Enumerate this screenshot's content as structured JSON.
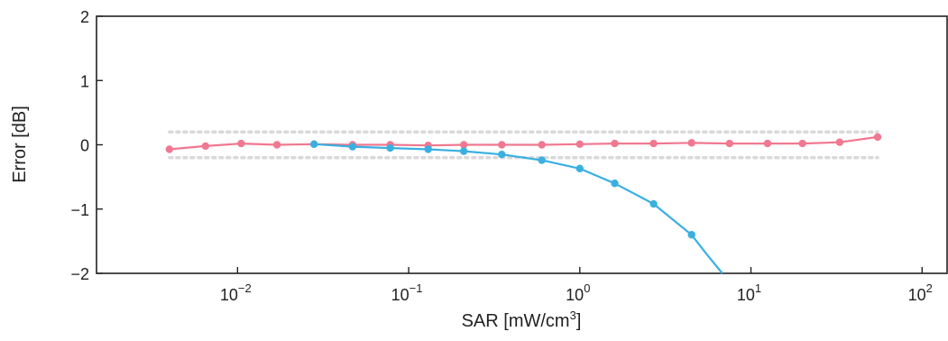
{
  "chart_data": {
    "type": "line",
    "title": "",
    "xlabel": "SAR [mW/cm",
    "xlabel_sup": "3",
    "xlabel_end": "]",
    "ylabel": "Error [dB]",
    "xscale": "log",
    "xlim": [
      0.0015,
      140
    ],
    "ylim": [
      -2,
      2
    ],
    "x_ticks": [
      {
        "value": 0.01,
        "base": "10",
        "exp": "−2"
      },
      {
        "value": 0.1,
        "base": "10",
        "exp": "−1"
      },
      {
        "value": 1,
        "base": "10",
        "exp": "0"
      },
      {
        "value": 10,
        "base": "10",
        "exp": "1"
      },
      {
        "value": 100,
        "base": "10",
        "exp": "2"
      }
    ],
    "y_ticks": [
      {
        "value": 2,
        "label": "2"
      },
      {
        "value": 1,
        "label": "1"
      },
      {
        "value": 0,
        "label": "0"
      },
      {
        "value": -1,
        "label": "−1"
      },
      {
        "value": -2,
        "label": "−2"
      }
    ],
    "reference_band": {
      "upper": 0.2,
      "lower": -0.2,
      "x_start": 0.004,
      "x_end": 55,
      "color": "#d9d9d9"
    },
    "series": [
      {
        "color": "#f07890",
        "x": [
          0.004,
          0.0065,
          0.0105,
          0.017,
          0.028,
          0.047,
          0.078,
          0.13,
          0.21,
          0.35,
          0.6,
          1.0,
          1.6,
          2.7,
          4.5,
          7.5,
          12.5,
          20,
          33,
          55
        ],
        "y": [
          -0.07,
          -0.02,
          0.02,
          0.0,
          0.01,
          0.0,
          0.0,
          -0.01,
          0.0,
          0.0,
          0.0,
          0.01,
          0.02,
          0.02,
          0.03,
          0.02,
          0.02,
          0.02,
          0.04,
          0.12
        ]
      },
      {
        "color": "#3ab0e0",
        "x": [
          0.028,
          0.047,
          0.078,
          0.13,
          0.21,
          0.35,
          0.6,
          1.0,
          1.6,
          2.7,
          4.5
        ],
        "y": [
          0.01,
          -0.03,
          -0.05,
          -0.07,
          -0.1,
          -0.15,
          -0.24,
          -0.37,
          -0.6,
          -0.92,
          -1.4
        ],
        "tail_x": [
          4.5,
          5.5,
          6.8
        ],
        "tail_y": [
          -1.4,
          -1.7,
          -2.0
        ]
      }
    ]
  }
}
